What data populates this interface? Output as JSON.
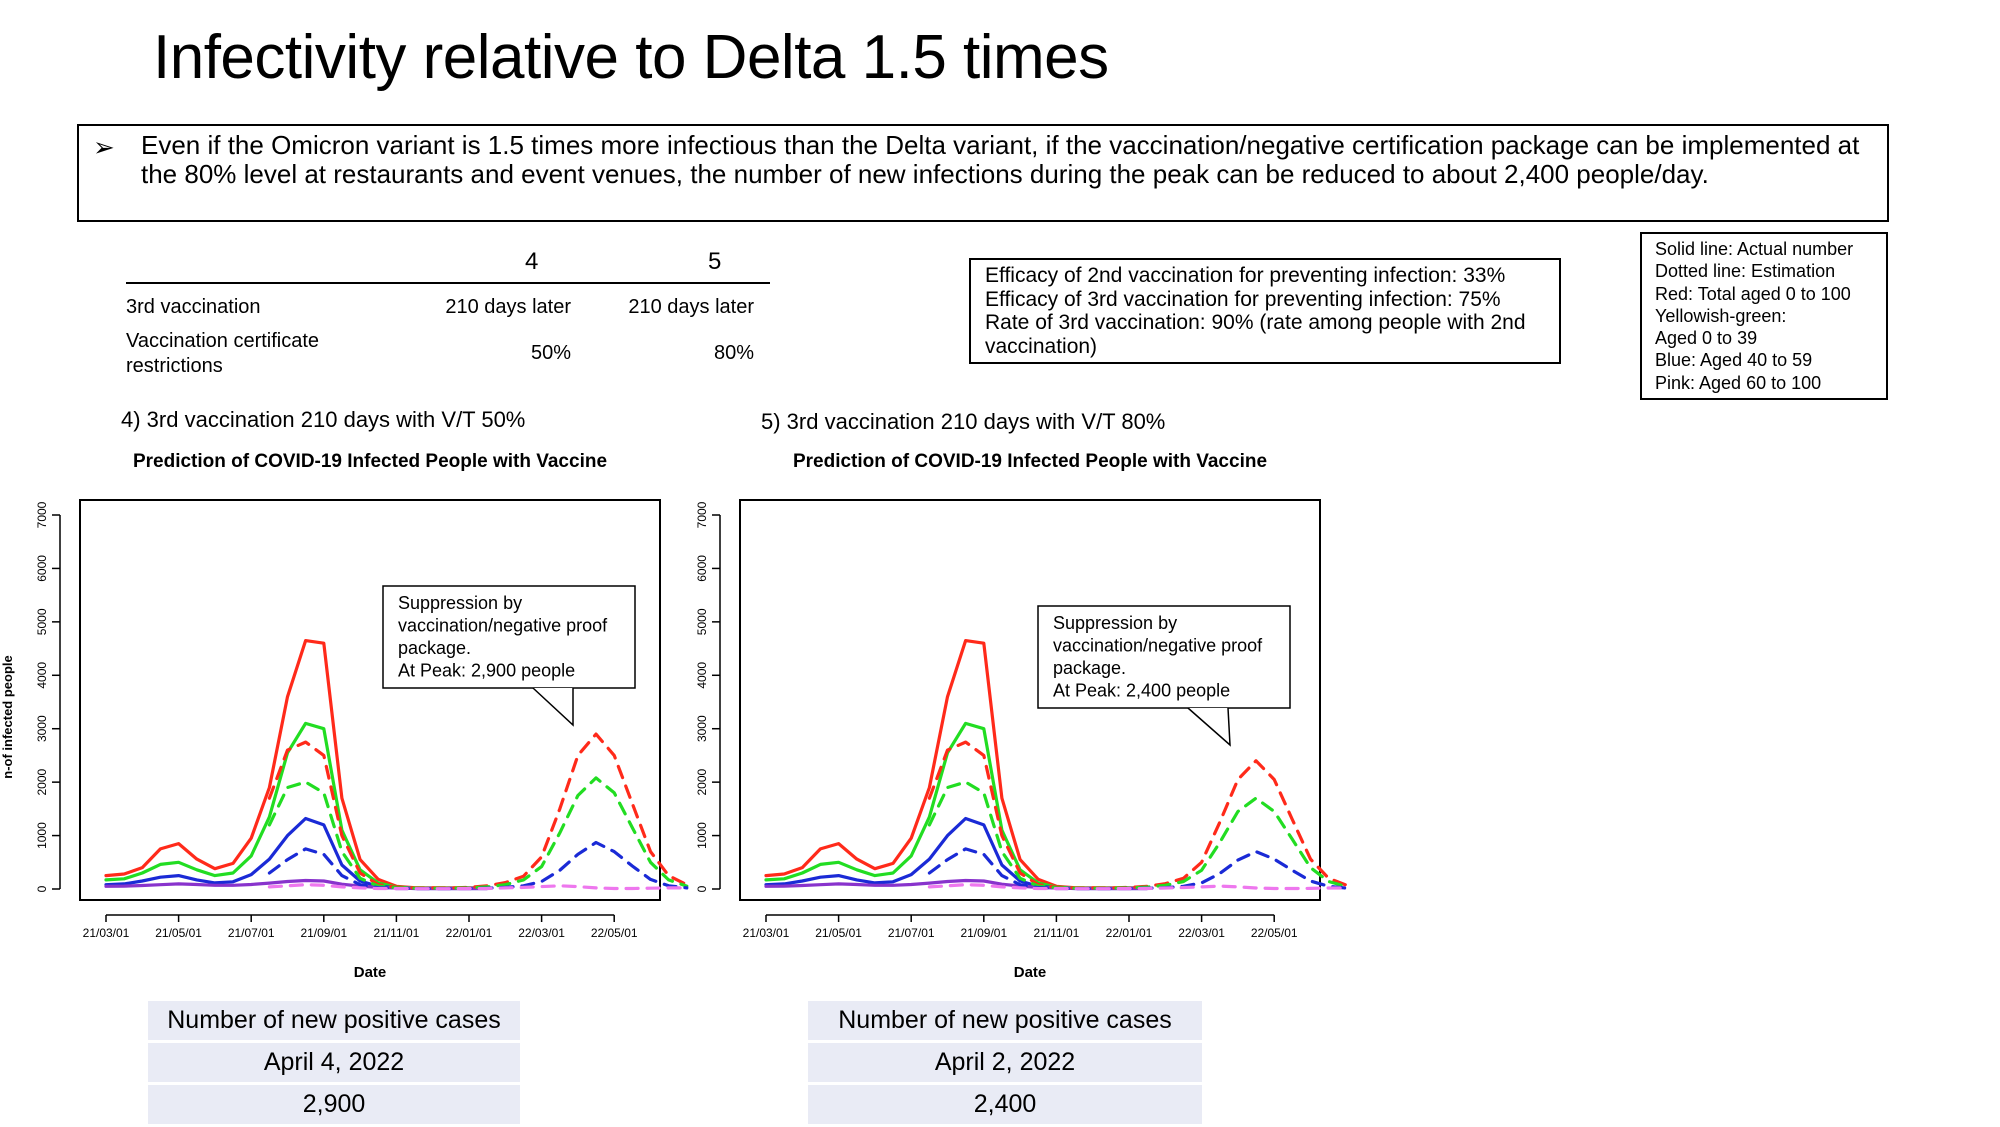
{
  "title": "Infectivity relative to Delta 1.5 times",
  "summary": {
    "bullet": "➢",
    "text": "Even if the Omicron variant is 1.5 times more infectious than the Delta variant, if the vaccination/negative certification package can be implemented at the 80% level at restaurants and event venues, the number of new infections during the peak can be reduced to about 2,400 people/day."
  },
  "config_table": {
    "columns": [
      "4",
      "5"
    ],
    "rows": [
      {
        "label": "3rd vaccination",
        "values": [
          "210 days later",
          "210 days later"
        ]
      },
      {
        "label": "Vaccination certificate restrictions",
        "values": [
          "50%",
          "80%"
        ]
      }
    ]
  },
  "efficacy_notes": [
    "Efficacy of 2nd vaccination for preventing infection: 33%",
    "Efficacy of 3rd vaccination for preventing infection: 75%",
    "Rate of 3rd vaccination: 90% (rate among people with 2nd vaccination)"
  ],
  "legend_notes": [
    "Solid line: Actual number",
    "Dotted line: Estimation",
    "Red: Total aged 0 to 100",
    "Yellowish-green:",
    "Aged 0 to 39",
    "Blue: Aged 40 to 59",
    "Pink: Aged 60 to 100"
  ],
  "colors": {
    "red": "#ff2a1a",
    "green": "#22dd22",
    "blue": "#1a2ad6",
    "pink": "#ee77ee",
    "purple": "#8833cc",
    "box_fill": "#e9ebf5"
  },
  "panels": [
    {
      "label": "4) 3rd vaccination 210 days with V/T 50%",
      "callout": [
        "Suppression by",
        "vaccination/negative proof",
        "package.",
        "At Peak: 2,900 people"
      ],
      "result_table": [
        "Number of new positive cases",
        "April 4, 2022",
        "2,900"
      ]
    },
    {
      "label": "5) 3rd vaccination 210 days with V/T 80%",
      "callout": [
        "Suppression by",
        "vaccination/negative proof",
        "package.",
        "At Peak: 2,400 people"
      ],
      "result_table": [
        "Number of new positive cases",
        "April 2, 2022",
        "2,400"
      ]
    }
  ],
  "chart_data": [
    {
      "type": "line",
      "title": "Prediction of COVID-19 Infected People with Vaccine",
      "xlabel": "Date",
      "ylabel": "n-of infected people",
      "xticks": [
        "21/03/01",
        "21/05/01",
        "21/07/01",
        "21/09/01",
        "21/11/01",
        "22/01/01",
        "22/03/01",
        "22/05/01"
      ],
      "yticks": [
        0,
        1000,
        2000,
        3000,
        4000,
        5000,
        6000,
        7000
      ],
      "ylim": [
        0,
        7000
      ],
      "grid": false,
      "x": [
        0,
        0.5,
        1,
        1.5,
        2,
        2.5,
        3,
        3.5,
        4,
        4.5,
        5,
        5.5,
        6,
        6.5,
        7,
        7.5,
        8,
        8.5,
        9,
        9.5,
        10,
        10.5,
        11,
        11.5,
        12,
        12.5,
        13,
        13.5,
        14,
        14.5,
        15,
        15.5,
        16
      ],
      "series": [
        {
          "color": "red",
          "style": "solid",
          "values": [
            250,
            280,
            400,
            750,
            850,
            560,
            380,
            480,
            950,
            1900,
            3600,
            4650,
            4600,
            1700,
            550,
            180,
            50,
            25,
            20,
            20,
            20,
            20,
            null,
            null,
            null,
            null,
            null,
            null,
            null,
            null,
            null,
            null,
            null
          ]
        },
        {
          "color": "green",
          "style": "solid",
          "values": [
            170,
            190,
            300,
            460,
            500,
            360,
            250,
            300,
            620,
            1350,
            2550,
            3100,
            3000,
            1100,
            360,
            110,
            35,
            18,
            15,
            15,
            15,
            15,
            null,
            null,
            null,
            null,
            null,
            null,
            null,
            null,
            null,
            null,
            null
          ]
        },
        {
          "color": "blue",
          "style": "solid",
          "values": [
            80,
            95,
            150,
            220,
            250,
            170,
            115,
            135,
            270,
            560,
            1000,
            1320,
            1200,
            450,
            150,
            50,
            20,
            10,
            10,
            10,
            10,
            10,
            null,
            null,
            null,
            null,
            null,
            null,
            null,
            null,
            null,
            null,
            null
          ]
        },
        {
          "color": "purple",
          "style": "solid",
          "values": [
            50,
            55,
            65,
            80,
            95,
            85,
            70,
            70,
            85,
            110,
            140,
            160,
            150,
            90,
            55,
            30,
            18,
            12,
            10,
            10,
            10,
            10,
            null,
            null,
            null,
            null,
            null,
            null,
            null,
            null,
            null,
            null,
            null
          ]
        },
        {
          "color": "red",
          "style": "dashed",
          "values": [
            null,
            null,
            null,
            null,
            null,
            null,
            null,
            null,
            null,
            1700,
            2600,
            2750,
            2500,
            1000,
            300,
            80,
            30,
            20,
            20,
            20,
            30,
            60,
            120,
            240,
            600,
            1500,
            2500,
            2900,
            2500,
            1600,
            700,
            250,
            80
          ]
        },
        {
          "color": "green",
          "style": "dashed",
          "values": [
            null,
            null,
            null,
            null,
            null,
            null,
            null,
            null,
            null,
            1200,
            1900,
            2000,
            1800,
            700,
            200,
            55,
            20,
            15,
            15,
            15,
            20,
            40,
            80,
            170,
            420,
            1050,
            1750,
            2080,
            1800,
            1150,
            500,
            170,
            55
          ]
        },
        {
          "color": "blue",
          "style": "dashed",
          "values": [
            null,
            null,
            null,
            null,
            null,
            null,
            null,
            null,
            null,
            300,
            550,
            750,
            650,
            250,
            80,
            25,
            10,
            8,
            8,
            8,
            10,
            15,
            30,
            60,
            140,
            350,
            650,
            870,
            700,
            430,
            180,
            60,
            20
          ]
        },
        {
          "color": "pink",
          "style": "dashed",
          "values": [
            null,
            null,
            null,
            null,
            null,
            null,
            null,
            null,
            null,
            40,
            60,
            80,
            70,
            40,
            20,
            10,
            8,
            6,
            6,
            6,
            8,
            10,
            20,
            30,
            45,
            60,
            45,
            20,
            10,
            10,
            15,
            20,
            20
          ]
        }
      ]
    },
    {
      "type": "line",
      "title": "Prediction of COVID-19 Infected People with Vaccine",
      "xlabel": "Date",
      "ylabel": "",
      "xticks": [
        "21/03/01",
        "21/05/01",
        "21/07/01",
        "21/09/01",
        "21/11/01",
        "22/01/01",
        "22/03/01",
        "22/05/01"
      ],
      "yticks": [
        0,
        1000,
        2000,
        3000,
        4000,
        5000,
        6000,
        7000
      ],
      "ylim": [
        0,
        7000
      ],
      "grid": false,
      "x": [
        0,
        0.5,
        1,
        1.5,
        2,
        2.5,
        3,
        3.5,
        4,
        4.5,
        5,
        5.5,
        6,
        6.5,
        7,
        7.5,
        8,
        8.5,
        9,
        9.5,
        10,
        10.5,
        11,
        11.5,
        12,
        12.5,
        13,
        13.5,
        14,
        14.5,
        15,
        15.5,
        16
      ],
      "series": [
        {
          "color": "red",
          "style": "solid",
          "values": [
            250,
            280,
            400,
            750,
            850,
            560,
            380,
            480,
            950,
            1900,
            3600,
            4650,
            4600,
            1700,
            550,
            180,
            50,
            25,
            20,
            20,
            20,
            20,
            null,
            null,
            null,
            null,
            null,
            null,
            null,
            null,
            null,
            null,
            null
          ]
        },
        {
          "color": "green",
          "style": "solid",
          "values": [
            170,
            190,
            300,
            460,
            500,
            360,
            250,
            300,
            620,
            1350,
            2550,
            3100,
            3000,
            1100,
            360,
            110,
            35,
            18,
            15,
            15,
            15,
            15,
            null,
            null,
            null,
            null,
            null,
            null,
            null,
            null,
            null,
            null,
            null
          ]
        },
        {
          "color": "blue",
          "style": "solid",
          "values": [
            80,
            95,
            150,
            220,
            250,
            170,
            115,
            135,
            270,
            560,
            1000,
            1320,
            1200,
            450,
            150,
            50,
            20,
            10,
            10,
            10,
            10,
            10,
            null,
            null,
            null,
            null,
            null,
            null,
            null,
            null,
            null,
            null,
            null
          ]
        },
        {
          "color": "purple",
          "style": "solid",
          "values": [
            50,
            55,
            65,
            80,
            95,
            85,
            70,
            70,
            85,
            110,
            140,
            160,
            150,
            90,
            55,
            30,
            18,
            12,
            10,
            10,
            10,
            10,
            null,
            null,
            null,
            null,
            null,
            null,
            null,
            null,
            null,
            null,
            null
          ]
        },
        {
          "color": "red",
          "style": "dashed",
          "values": [
            null,
            null,
            null,
            null,
            null,
            null,
            null,
            null,
            null,
            1700,
            2600,
            2750,
            2500,
            1000,
            300,
            80,
            30,
            20,
            20,
            20,
            30,
            50,
            100,
            200,
            500,
            1250,
            2050,
            2400,
            2050,
            1300,
            560,
            200,
            70
          ]
        },
        {
          "color": "green",
          "style": "dashed",
          "values": [
            null,
            null,
            null,
            null,
            null,
            null,
            null,
            null,
            null,
            1200,
            1900,
            2000,
            1800,
            700,
            200,
            55,
            20,
            15,
            15,
            15,
            20,
            35,
            70,
            140,
            350,
            870,
            1450,
            1700,
            1450,
            930,
            400,
            140,
            45
          ]
        },
        {
          "color": "blue",
          "style": "dashed",
          "values": [
            null,
            null,
            null,
            null,
            null,
            null,
            null,
            null,
            null,
            300,
            550,
            750,
            650,
            250,
            80,
            25,
            10,
            8,
            8,
            8,
            10,
            14,
            25,
            50,
            115,
            290,
            540,
            700,
            560,
            350,
            150,
            50,
            15
          ]
        },
        {
          "color": "pink",
          "style": "dashed",
          "values": [
            null,
            null,
            null,
            null,
            null,
            null,
            null,
            null,
            null,
            40,
            60,
            80,
            70,
            40,
            20,
            10,
            8,
            6,
            6,
            6,
            8,
            10,
            18,
            28,
            40,
            55,
            40,
            18,
            10,
            10,
            12,
            18,
            18
          ]
        }
      ]
    }
  ]
}
